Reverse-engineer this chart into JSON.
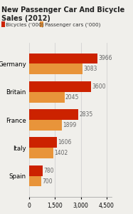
{
  "title": "New Passenger Car And Bicycle Sales (2012)",
  "legend": [
    {
      "label": "Bicycles (‘000)",
      "color": "#cc2200"
    },
    {
      "label": "Passenger cars (‘000)",
      "color": "#e8943a"
    }
  ],
  "countries": [
    "Germany",
    "Britain",
    "France",
    "Italy",
    "Spain"
  ],
  "bicycles": [
    3966,
    3600,
    2835,
    1606,
    780
  ],
  "cars": [
    3083,
    2045,
    1899,
    1402,
    700
  ],
  "bicycle_color": "#cc2200",
  "car_color": "#e8943a",
  "xlim": [
    0,
    4800
  ],
  "xticks": [
    0,
    1500,
    3000,
    4500
  ],
  "xtick_labels": [
    "0",
    "1,500",
    "3,000",
    "4,500"
  ],
  "bar_height": 0.38,
  "background_color": "#f0efeb",
  "grid_color": "#cccccc",
  "title_fontsize": 7.0,
  "label_fontsize": 6.2,
  "tick_fontsize": 5.5,
  "value_fontsize": 5.5
}
